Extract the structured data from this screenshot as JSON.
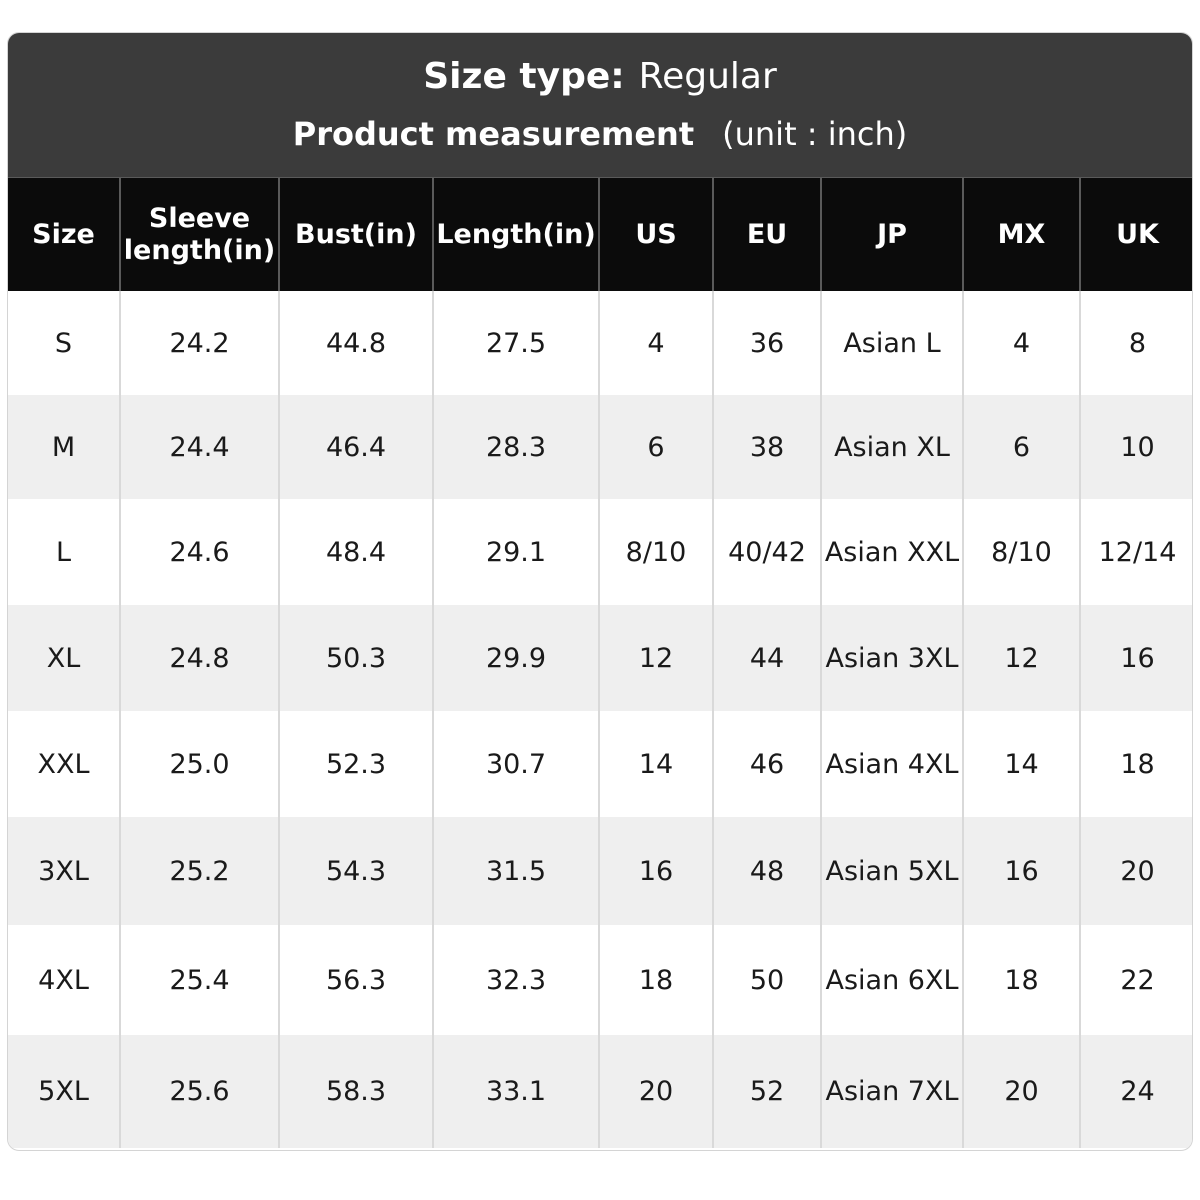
{
  "header": {
    "size_type_label": "Size type:",
    "size_type_value": "Regular",
    "measurement_label": "Product measurement",
    "unit_note": "(unit : inch)"
  },
  "table": {
    "columns": [
      "Size",
      "Sleeve\nlength(in)",
      "Bust(in)",
      "Length(in)",
      "US",
      "EU",
      "JP",
      "MX",
      "UK"
    ],
    "rows": [
      [
        "S",
        "24.2",
        "44.8",
        "27.5",
        "4",
        "36",
        "Asian L",
        "4",
        "8"
      ],
      [
        "M",
        "24.4",
        "46.4",
        "28.3",
        "6",
        "38",
        "Asian XL",
        "6",
        "10"
      ],
      [
        "L",
        "24.6",
        "48.4",
        "29.1",
        "8/10",
        "40/42",
        "Asian XXL",
        "8/10",
        "12/14"
      ],
      [
        "XL",
        "24.8",
        "50.3",
        "29.9",
        "12",
        "44",
        "Asian 3XL",
        "12",
        "16"
      ],
      [
        "XXL",
        "25.0",
        "52.3",
        "30.7",
        "14",
        "46",
        "Asian 4XL",
        "14",
        "18"
      ],
      [
        "3XL",
        "25.2",
        "54.3",
        "31.5",
        "16",
        "48",
        "Asian 5XL",
        "16",
        "20"
      ],
      [
        "4XL",
        "25.4",
        "56.3",
        "32.3",
        "18",
        "50",
        "Asian 6XL",
        "18",
        "22"
      ],
      [
        "5XL",
        "25.6",
        "58.3",
        "33.1",
        "20",
        "52",
        "Asian 7XL",
        "20",
        "24"
      ]
    ]
  },
  "colors": {
    "banner_bg": "#3b3b3b",
    "header_row_bg": "#0b0b0b",
    "row_alt_bg": "#efefef"
  }
}
